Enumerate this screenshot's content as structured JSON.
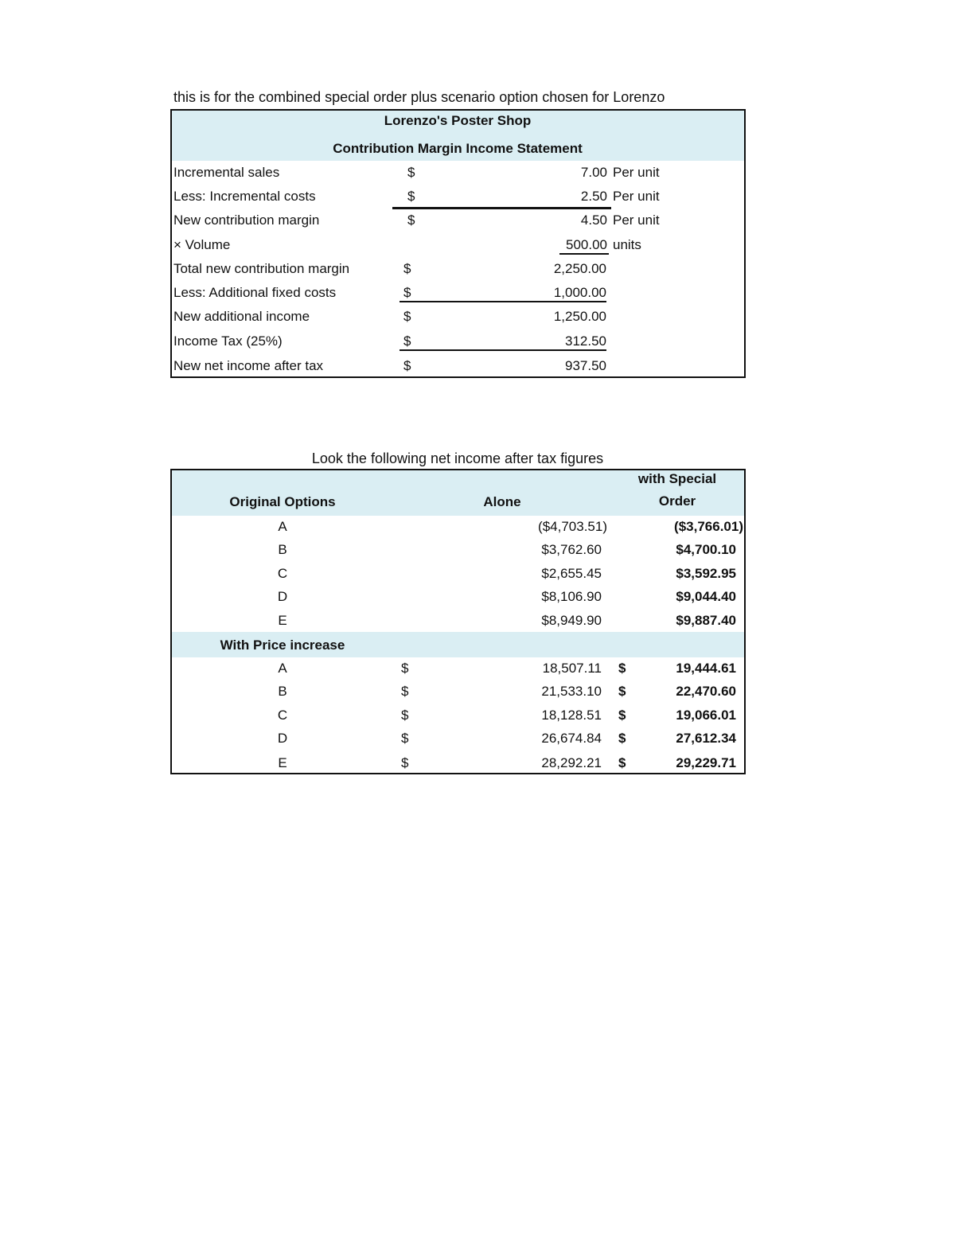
{
  "note": "this is for the combined special order plus scenario option chosen for Lorenzo",
  "statement": {
    "title": "Lorenzo's Poster Shop",
    "subtitle": "Contribution Margin Income Statement",
    "fill_color": "#DAEEF3",
    "rows": [
      {
        "label": "Incremental sales",
        "currency": "$",
        "amount": "7.00",
        "unit": "Per unit"
      },
      {
        "label": "Less: Incremental costs",
        "currency": "$",
        "amount": "2.50",
        "unit": "Per unit"
      },
      {
        "label": "New contribution margin",
        "currency": "$",
        "amount": "4.50",
        "unit": "Per unit"
      },
      {
        "label": "× Volume",
        "currency": "",
        "amount": "500.00",
        "unit": "units"
      },
      {
        "label": "Total new contribution margin",
        "currency": "$",
        "amount": "2,250.00",
        "unit": ""
      },
      {
        "label": "Less: Additional fixed costs",
        "currency": "$",
        "amount": "1,000.00",
        "unit": ""
      },
      {
        "label": "New additional income",
        "currency": "$",
        "amount": "1,250.00",
        "unit": ""
      },
      {
        "label": "Income Tax (25%)",
        "currency": "$",
        "amount": "312.50",
        "unit": ""
      },
      {
        "label": "New net income after tax",
        "currency": "$",
        "amount": "937.50",
        "unit": ""
      }
    ]
  },
  "comparison": {
    "title": "Look the following net income after tax figures",
    "headers": {
      "options": "Original Options",
      "alone": "Alone",
      "special_1": "with Special",
      "special_2": "Order"
    },
    "original": [
      {
        "option": "A",
        "alone": "($4,703.51)",
        "special": "($3,766.01)"
      },
      {
        "option": "B",
        "alone": "$3,762.60",
        "special": "$4,700.10"
      },
      {
        "option": "C",
        "alone": "$2,655.45",
        "special": "$3,592.95"
      },
      {
        "option": "D",
        "alone": "$8,106.90",
        "special": "$9,044.40"
      },
      {
        "option": "E",
        "alone": "$8,949.90",
        "special": "$9,887.40"
      }
    ],
    "section_label": "With Price increase",
    "price_increase": [
      {
        "option": "A",
        "cur": "$",
        "alone": "18,507.11",
        "cur2": "$",
        "special": "19,444.61"
      },
      {
        "option": "B",
        "cur": "$",
        "alone": "21,533.10",
        "cur2": "$",
        "special": "22,470.60"
      },
      {
        "option": "C",
        "cur": "$",
        "alone": "18,128.51",
        "cur2": "$",
        "special": "19,066.01"
      },
      {
        "option": "D",
        "cur": "$",
        "alone": "26,674.84",
        "cur2": "$",
        "special": "27,612.34"
      },
      {
        "option": "E",
        "cur": "$",
        "alone": "28,292.21",
        "cur2": "$",
        "special": "29,229.71"
      }
    ]
  }
}
